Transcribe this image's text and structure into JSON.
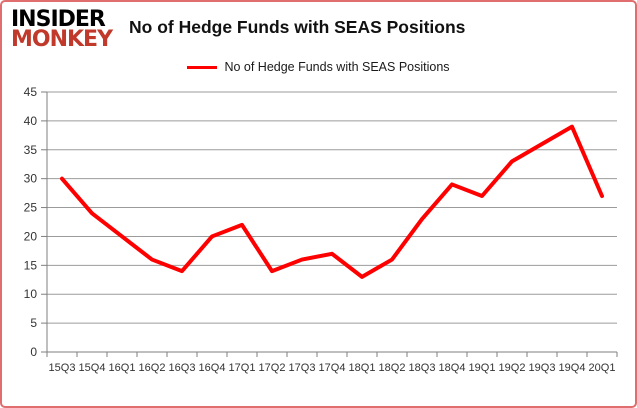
{
  "brand": {
    "line1": "INSIDER",
    "line2": "MONKEY",
    "line1_color": "#000000",
    "line2_color": "#c0392b"
  },
  "header": {
    "title": "No of Hedge Funds with SEAS Positions"
  },
  "legend": {
    "label": "No of Hedge Funds with SEAS Positions",
    "line_color": "#ff0000"
  },
  "chart_data": {
    "type": "line",
    "title": "No of Hedge Funds with SEAS Positions",
    "categories": [
      "15Q3",
      "15Q4",
      "16Q1",
      "16Q2",
      "16Q3",
      "16Q4",
      "17Q1",
      "17Q2",
      "17Q3",
      "17Q4",
      "18Q1",
      "18Q2",
      "18Q3",
      "18Q4",
      "19Q1",
      "19Q2",
      "19Q3",
      "19Q4",
      "20Q1"
    ],
    "values": [
      30,
      24,
      20,
      16,
      14,
      20,
      22,
      14,
      16,
      17,
      13,
      16,
      23,
      29,
      27,
      33,
      36,
      39,
      27
    ],
    "xlabel": "",
    "ylabel": "",
    "ylim": [
      0,
      45
    ],
    "ytick_step": 5,
    "grid": true,
    "legend_position": "top-center",
    "line_color": "#ff0000",
    "grid_color": "#9b9b9b",
    "axis_color": "#7f7f7f",
    "tick_label_color": "#333333",
    "frame_color": "#e06e6e"
  }
}
